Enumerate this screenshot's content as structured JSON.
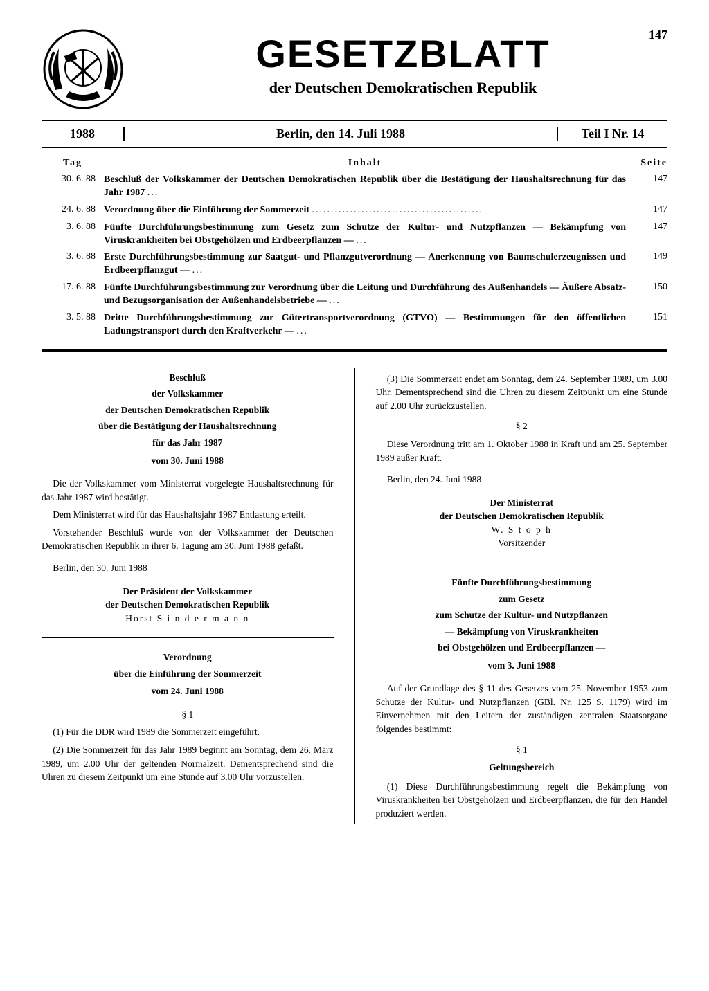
{
  "page_number": "147",
  "masthead": {
    "title": "GESETZBLATT",
    "subtitle": "der Deutschen Demokratischen Republik"
  },
  "info": {
    "year": "1988",
    "place_date": "Berlin, den 14. Juli 1988",
    "issue": "Teil I Nr. 14"
  },
  "toc": {
    "head_day": "Tag",
    "head_content": "Inhalt",
    "head_page": "Seite",
    "rows": [
      {
        "day": "30. 6. 88",
        "text": "Beschluß der Volkskammer der Deutschen Demokratischen Republik über die Bestätigung der Haushaltsrechnung für das Jahr 1987",
        "page": "147"
      },
      {
        "day": "24. 6. 88",
        "text": "Verordnung über die Einführung der Sommerzeit",
        "page": "147"
      },
      {
        "day": "3. 6. 88",
        "text": "Fünfte Durchführungsbestimmung zum Gesetz zum Schutze der Kultur- und Nutzpflanzen — Bekämpfung von Viruskrankheiten bei Obstgehölzen und Erdbeerpflanzen —",
        "page": "147"
      },
      {
        "day": "3. 6. 88",
        "text": "Erste Durchführungsbestimmung zur Saatgut- und Pflanzgutverordnung — Anerkennung von Baumschulerzeugnissen und Erdbeerpflanzgut —",
        "page": "149"
      },
      {
        "day": "17. 6. 88",
        "text": "Fünfte Durchführungsbestimmung zur Verordnung über die Leitung und Durchführung des Außenhandels — Äußere Absatz- und Bezugsorganisation der Außenhandelsbetriebe —",
        "page": "150"
      },
      {
        "day": "3. 5. 88",
        "text": "Dritte Durchführungsbestimmung zur Gütertransportverordnung (GTVO) — Bestimmungen für den öffentlichen Ladungstransport durch den Kraftverkehr —",
        "page": "151"
      }
    ]
  },
  "left_col": {
    "art1": {
      "t1": "Beschluß",
      "t2": "der Volkskammer",
      "t3": "der Deutschen Demokratischen Republik",
      "t4": "über die Bestätigung der Haushaltsrechnung",
      "t5": "für das Jahr 1987",
      "date": "vom 30. Juni 1988",
      "p1": "Die der Volkskammer vom Ministerrat vorgelegte Haushaltsrechnung für das Jahr 1987 wird bestätigt.",
      "p2": "Dem Ministerrat wird für das Haushaltsjahr 1987 Entlastung erteilt.",
      "p3": "Vorstehender Beschluß wurde von der Volkskammer der Deutschen Demokratischen Republik in ihrer 6. Tagung am 30. Juni 1988 gefaßt.",
      "place": "Berlin, den 30. Juni 1988",
      "sig1": "Der Präsident der Volkskammer",
      "sig2": "der Deutschen Demokratischen Republik",
      "sig3": "Horst  S i n d e r m a n n"
    },
    "art2": {
      "t1": "Verordnung",
      "t2": "über die Einführung der Sommerzeit",
      "date": "vom 24. Juni 1988",
      "s1": "§ 1",
      "p1": "(1) Für die DDR wird 1989 die Sommerzeit eingeführt.",
      "p2": "(2) Die Sommerzeit für das Jahr 1989 beginnt am Sonntag, dem 26. März 1989, um 2.00 Uhr der geltenden Normalzeit. Dementsprechend sind die Uhren zu diesem Zeitpunkt um eine Stunde auf 3.00 Uhr vorzustellen."
    }
  },
  "right_col": {
    "art2b": {
      "p3": "(3) Die Sommerzeit endet am Sonntag, dem 24. September 1989, um 3.00 Uhr. Dementsprechend sind die Uhren zu diesem Zeitpunkt um eine Stunde auf 2.00 Uhr zurückzustellen.",
      "s2": "§ 2",
      "p4": "Diese Verordnung tritt am 1. Oktober 1988 in Kraft und am 25. September 1989 außer Kraft.",
      "place": "Berlin, den 24. Juni 1988",
      "sig1": "Der Ministerrat",
      "sig2": "der Deutschen Demokratischen Republik",
      "sig3": "W.  S t o p h",
      "sig4": "Vorsitzender"
    },
    "art3": {
      "t1": "Fünfte Durchführungsbestimmung",
      "t2": "zum Gesetz",
      "t3": "zum Schutze der Kultur- und Nutzpflanzen",
      "t4": "— Bekämpfung von Viruskrankheiten",
      "t5": "bei Obstgehölzen und Erdbeerpflanzen —",
      "date": "vom 3. Juni 1988",
      "p1": "Auf der Grundlage des § 11 des Gesetzes vom 25. November 1953 zum Schutze der Kultur- und Nutzpflanzen (GBl. Nr. 125 S. 1179) wird im Einvernehmen mit den Leitern der zuständigen zentralen Staatsorgane folgendes bestimmt:",
      "s1": "§ 1",
      "slabel": "Geltungsbereich",
      "p2": "(1) Diese Durchführungsbestimmung regelt die Bekämpfung von Viruskrankheiten bei Obstgehölzen und Erdbeerpflanzen, die für den Handel produziert werden."
    }
  }
}
